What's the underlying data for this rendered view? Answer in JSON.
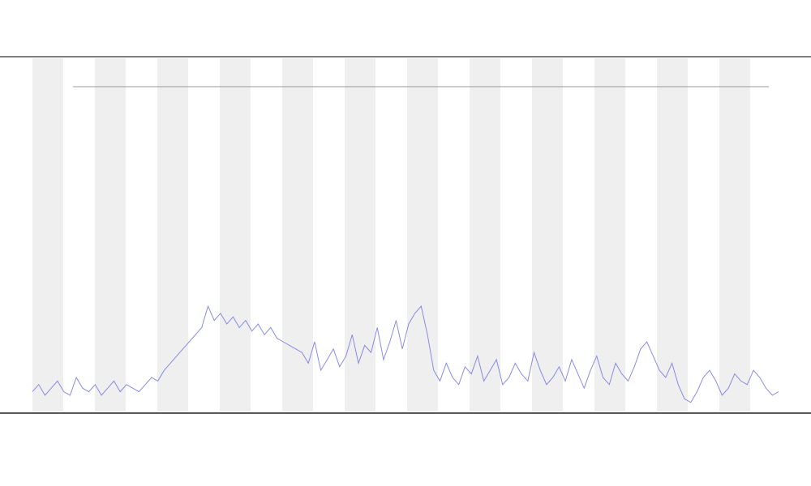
{
  "chart_data": {
    "type": "line",
    "series": [
      {
        "color": "#7777e0",
        "values": [
          6,
          8,
          5,
          7,
          9,
          6,
          5,
          10,
          7,
          6,
          8,
          5,
          7,
          9,
          6,
          8,
          7,
          6,
          8,
          10,
          9,
          12,
          14,
          16,
          18,
          20,
          22,
          24,
          30,
          26,
          28,
          25,
          27,
          24,
          26,
          23,
          25,
          22,
          24,
          21,
          20,
          19,
          18,
          17,
          14,
          20,
          12,
          15,
          18,
          13,
          16,
          22,
          14,
          19,
          17,
          24,
          15,
          20,
          26,
          18,
          25,
          28,
          30,
          22,
          12,
          9,
          14,
          10,
          8,
          13,
          11,
          16,
          9,
          12,
          15,
          8,
          10,
          14,
          11,
          9,
          17,
          12,
          8,
          10,
          13,
          9,
          15,
          11,
          7,
          12,
          16,
          10,
          8,
          14,
          11,
          9,
          13,
          18,
          20,
          16,
          12,
          10,
          14,
          8,
          4,
          3,
          6,
          10,
          12,
          9,
          5,
          7,
          11,
          9,
          8,
          12,
          10,
          7,
          5,
          6
        ]
      }
    ],
    "ylim": [
      0,
      100
    ]
  }
}
